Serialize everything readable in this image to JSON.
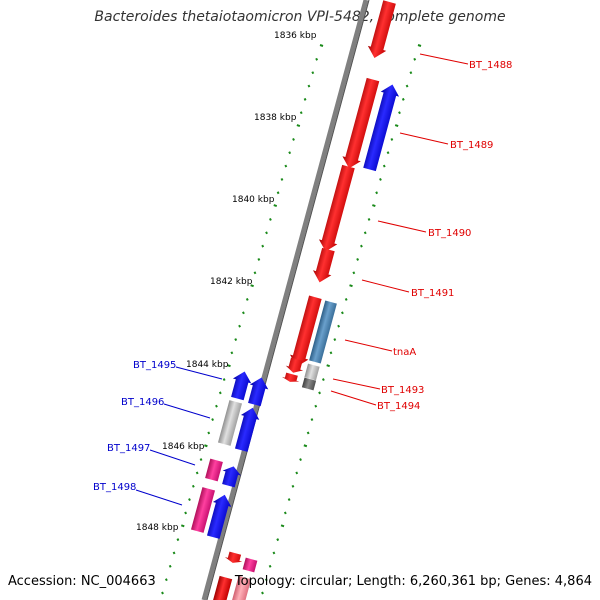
{
  "title": "Bacteroides thetaiotaomicron VPI-5482, complete genome",
  "footer": {
    "accession": "Accession: NC_004663",
    "summary": "Topology: circular; Length: 6,260,361 bp; Genes: 4,864"
  },
  "scale_labels": [
    "1836 kbp",
    "1838 kbp",
    "1840 kbp",
    "1842 kbp",
    "1844 kbp",
    "1846 kbp",
    "1848 kbp"
  ],
  "forward_gene_labels": [
    "BT_1488",
    "BT_1489",
    "BT_1490",
    "BT_1491",
    "tnaA",
    "BT_1493",
    "BT_1494"
  ],
  "reverse_gene_labels": [
    "BT_1495",
    "BT_1496",
    "BT_1497",
    "BT_1498"
  ],
  "colors": {
    "backbone": "#808080",
    "tick": "#1a8a1a",
    "forward_label": "#e00000",
    "reverse_label": "#0000cc",
    "gene_red": "#ff0000",
    "gene_blue": "#0000ff",
    "gene_steel": "#4682b4",
    "gene_gray": "#c0c0c0",
    "gene_dark": "#606060",
    "gene_pink": "#ff1493"
  }
}
